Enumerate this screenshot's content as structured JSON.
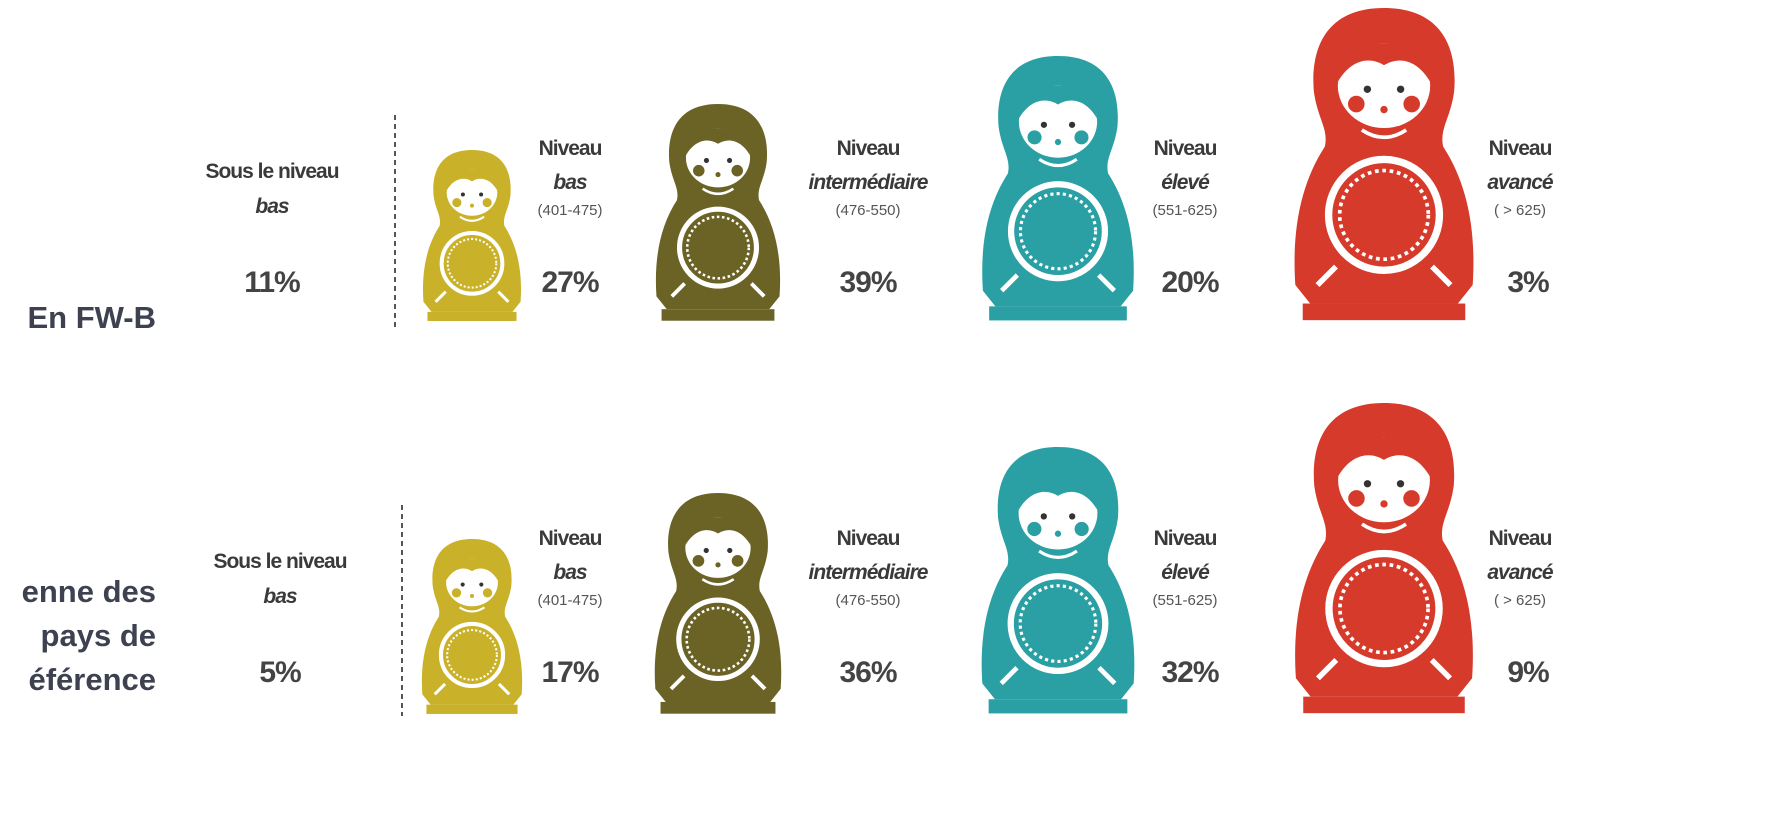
{
  "rows": [
    {
      "label": [
        "En FW-B"
      ],
      "below": {
        "title": "Sous le niveau",
        "emph": "bas",
        "pct": "11%"
      },
      "levels": [
        {
          "title": "Niveau",
          "emph": "bas",
          "range": "(401-475)",
          "pct": "27%"
        },
        {
          "title": "Niveau",
          "emph": "intermédiaire",
          "range": "(476-550)",
          "pct": "39%"
        },
        {
          "title": "Niveau",
          "emph": "élevé",
          "range": "(551-625)",
          "pct": "20%"
        },
        {
          "title": "Niveau",
          "emph": "avancé",
          "range": "( > 625)",
          "pct": "3%"
        }
      ]
    },
    {
      "label": [
        "enne des",
        "pays de",
        "éférence"
      ],
      "below": {
        "title": "Sous le niveau",
        "emph": "bas",
        "pct": "5%"
      },
      "levels": [
        {
          "title": "Niveau",
          "emph": "bas",
          "range": "(401-475)",
          "pct": "17%"
        },
        {
          "title": "Niveau",
          "emph": "intermédiaire",
          "range": "(476-550)",
          "pct": "36%"
        },
        {
          "title": "Niveau",
          "emph": "élevé",
          "range": "(551-625)",
          "pct": "32%"
        },
        {
          "title": "Niveau",
          "emph": "avancé",
          "range": "( > 625)",
          "pct": "9%"
        }
      ]
    }
  ]
}
